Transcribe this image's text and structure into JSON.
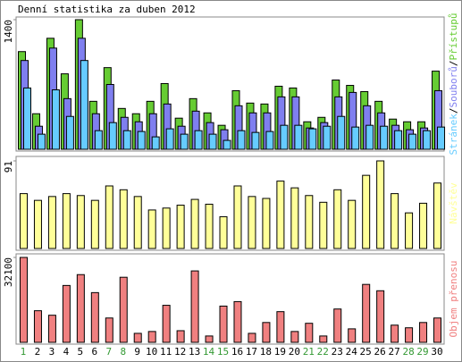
{
  "chart_data": [
    {
      "type": "bar",
      "title": "Denní statistika za duben 2012",
      "ylim": [
        0,
        1400
      ],
      "yticks": [
        1400
      ],
      "legend_separator": "/",
      "series": [
        {
          "name": "Stránek",
          "color": "#66ccff",
          "values": [
            662,
            163,
            642,
            355,
            959,
            201,
            288,
            201,
            192,
            134,
            221,
            163,
            201,
            163,
            96,
            201,
            182,
            192,
            259,
            259,
            221,
            249,
            355,
            240,
            259,
            249,
            201,
            163,
            201,
            240
          ]
        },
        {
          "name": "Souborů",
          "color": "#7f7fef",
          "values": [
            959,
            249,
            1093,
            547,
            1199,
            384,
            700,
            345,
            297,
            384,
            489,
            249,
            412,
            288,
            211,
            470,
            393,
            393,
            566,
            566,
            230,
            288,
            566,
            614,
            470,
            393,
            259,
            211,
            230,
            633
          ]
        },
        {
          "name": "Přístupů",
          "color": "#66cc33",
          "values": [
            1055,
            384,
            1199,
            815,
            1400,
            518,
            882,
            441,
            384,
            518,
            710,
            336,
            547,
            393,
            259,
            633,
            499,
            489,
            681,
            662,
            297,
            345,
            748,
            690,
            623,
            518,
            326,
            297,
            297,
            844
          ]
        }
      ]
    },
    {
      "type": "bar",
      "ylim": [
        0,
        91
      ],
      "yticks": [
        91
      ],
      "series": [
        {
          "name": "Návštěv",
          "color": "#ffff99",
          "values": [
            57,
            50,
            54,
            57,
            55,
            50,
            65,
            61,
            54,
            40,
            42,
            45,
            51,
            46,
            33,
            65,
            54,
            52,
            70,
            63,
            55,
            48,
            61,
            50,
            76,
            91,
            57,
            37,
            47,
            68
          ]
        }
      ]
    },
    {
      "type": "bar",
      "ylim": [
        0,
        32100
      ],
      "yticks": [
        32100
      ],
      "series": [
        {
          "name": "Objem přenosu",
          "color": "#f08080",
          "values": [
            32100,
            11950,
            10250,
            21500,
            25600,
            18800,
            9200,
            24600,
            3400,
            4100,
            14000,
            4400,
            27000,
            2400,
            13700,
            15400,
            3400,
            7500,
            11600,
            4100,
            7200,
            2400,
            12600,
            5100,
            21900,
            19500,
            6500,
            5500,
            7500,
            9200
          ]
        }
      ],
      "categories": [
        "1",
        "2",
        "3",
        "4",
        "5",
        "6",
        "7",
        "8",
        "9",
        "10",
        "11",
        "12",
        "13",
        "14",
        "15",
        "16",
        "17",
        "18",
        "19",
        "20",
        "21",
        "22",
        "23",
        "24",
        "25",
        "26",
        "27",
        "28",
        "29",
        "30"
      ],
      "category_colors": [
        "#339933",
        "#000000",
        "#000000",
        "#000000",
        "#000000",
        "#000000",
        "#339933",
        "#339933",
        "#000000",
        "#000000",
        "#000000",
        "#000000",
        "#000000",
        "#339933",
        "#339933",
        "#000000",
        "#000000",
        "#000000",
        "#000000",
        "#000000",
        "#339933",
        "#339933",
        "#000000",
        "#000000",
        "#000000",
        "#000000",
        "#000000",
        "#339933",
        "#339933",
        "#000000"
      ]
    }
  ]
}
